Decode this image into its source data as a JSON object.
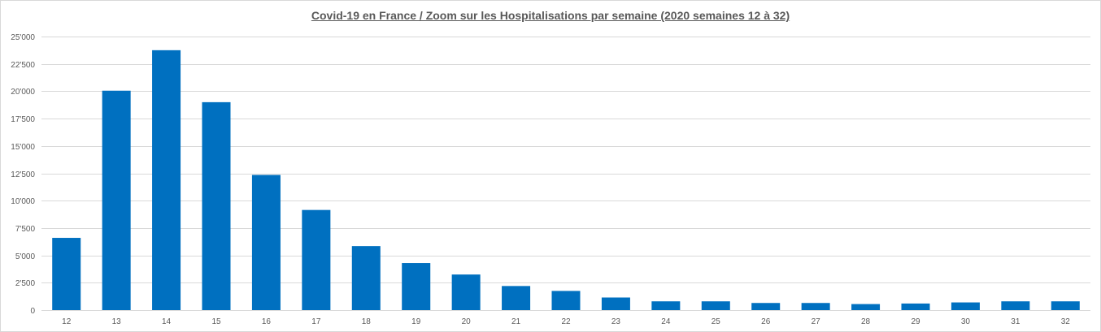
{
  "chart_data": {
    "type": "bar",
    "title": "Covid-19 en France / Zoom  sur les Hospitalisations par semaine (2020 semaines 12 à 32)",
    "xlabel": "",
    "ylabel": "",
    "categories": [
      "12",
      "13",
      "14",
      "15",
      "16",
      "17",
      "18",
      "19",
      "20",
      "21",
      "22",
      "23",
      "24",
      "25",
      "26",
      "27",
      "28",
      "29",
      "30",
      "31",
      "32"
    ],
    "series": [
      {
        "values": [
          6600,
          20050,
          23750,
          19000,
          12350,
          9150,
          5850,
          4300,
          3250,
          2200,
          1750,
          1150,
          800,
          800,
          650,
          650,
          550,
          600,
          700,
          800,
          800
        ],
        "color": "#0070c0"
      }
    ],
    "ylim": [
      0,
      25000
    ],
    "yticks": [
      0,
      2500,
      5000,
      7500,
      10000,
      12500,
      15000,
      17500,
      20000,
      22500,
      25000
    ],
    "ytick_labels": [
      "0",
      "2'500",
      "5'000",
      "7'500",
      "10'000",
      "12'500",
      "15'000",
      "17'500",
      "20'000",
      "22'500",
      "25'000"
    ],
    "grid": true,
    "gridline_color": "#d9d9d9",
    "legend": "none"
  }
}
